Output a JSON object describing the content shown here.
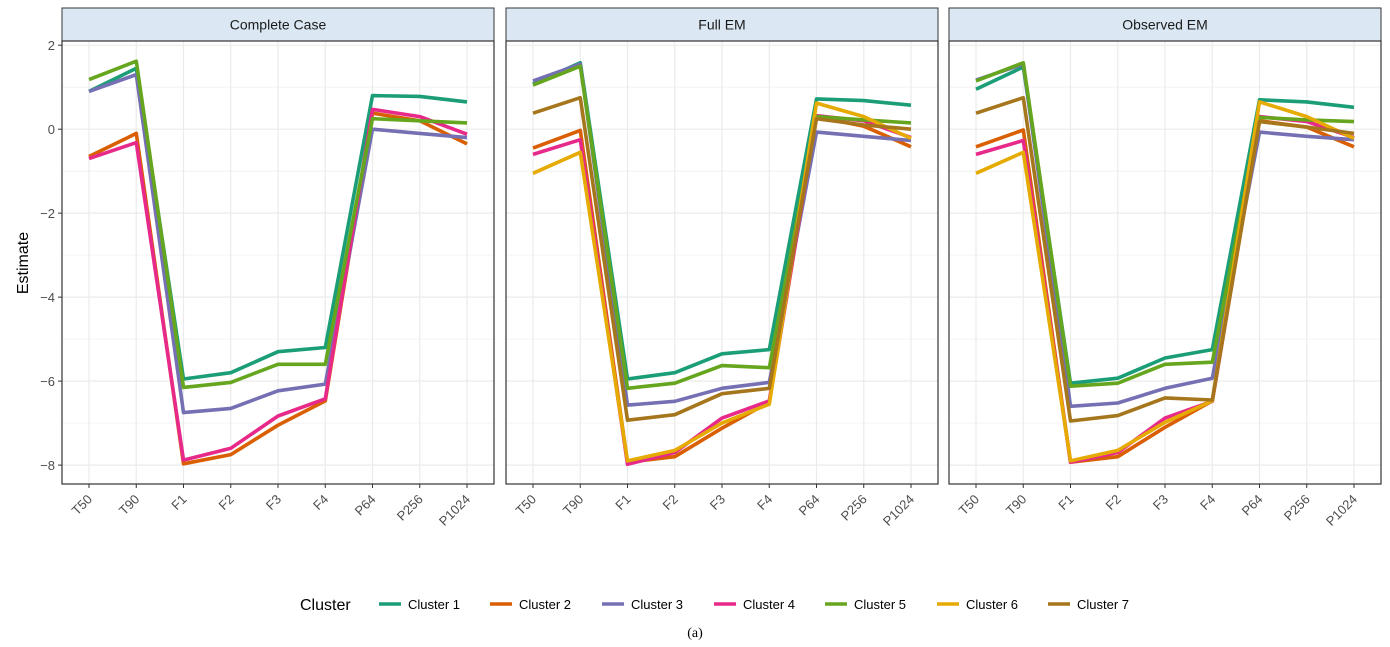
{
  "chart_data": {
    "type": "line",
    "ylabel": "Estimate",
    "xlabel": "",
    "categories": [
      "T50",
      "T90",
      "F1",
      "F2",
      "F3",
      "F4",
      "P64",
      "P256",
      "P1024"
    ],
    "y_ticks": [
      "2",
      "0",
      "−2",
      "−4",
      "−6",
      "−8"
    ],
    "y_tick_values": [
      2,
      0,
      -2,
      -4,
      -6,
      -8
    ],
    "ylim": [
      -8.45,
      2.1
    ],
    "grid": true,
    "legend": {
      "title": "Cluster",
      "position": "bottom",
      "items": [
        "Cluster 1",
        "Cluster 2",
        "Cluster 3",
        "Cluster 4",
        "Cluster 5",
        "Cluster 6",
        "Cluster 7"
      ]
    },
    "colors": {
      "Cluster 1": "#1b9e77",
      "Cluster 2": "#d95f02",
      "Cluster 3": "#7570b3",
      "Cluster 4": "#e7298a",
      "Cluster 5": "#66a61e",
      "Cluster 6": "#e6ab02",
      "Cluster 7": "#a6761d"
    },
    "panels": [
      {
        "title": "Complete Case",
        "series": [
          {
            "name": "Cluster 1",
            "values": [
              0.9,
              1.45,
              -5.95,
              -5.8,
              -5.3,
              -5.2,
              0.8,
              0.78,
              0.65
            ]
          },
          {
            "name": "Cluster 2",
            "values": [
              -0.65,
              -0.1,
              -7.97,
              -7.75,
              -7.05,
              -6.47,
              0.38,
              0.2,
              -0.35
            ]
          },
          {
            "name": "Cluster 3",
            "values": [
              0.9,
              1.3,
              -6.75,
              -6.65,
              -6.23,
              -6.07,
              0.0,
              -0.1,
              -0.2
            ]
          },
          {
            "name": "Cluster 4",
            "values": [
              -0.7,
              -0.32,
              -7.88,
              -7.6,
              -6.83,
              -6.42,
              0.47,
              0.3,
              -0.12
            ]
          },
          {
            "name": "Cluster 5",
            "values": [
              1.18,
              1.62,
              -6.15,
              -6.03,
              -5.6,
              -5.6,
              0.25,
              0.2,
              0.15
            ]
          }
        ]
      },
      {
        "title": "Full EM",
        "series": [
          {
            "name": "Cluster 1",
            "values": [
              1.08,
              1.58,
              -5.95,
              -5.8,
              -5.35,
              -5.25,
              0.72,
              0.68,
              0.57
            ]
          },
          {
            "name": "Cluster 2",
            "values": [
              -0.45,
              -0.03,
              -7.93,
              -7.8,
              -7.12,
              -6.5,
              0.3,
              0.07,
              -0.42
            ]
          },
          {
            "name": "Cluster 3",
            "values": [
              1.15,
              1.55,
              -6.57,
              -6.48,
              -6.17,
              -6.03,
              -0.07,
              -0.17,
              -0.27
            ]
          },
          {
            "name": "Cluster 4",
            "values": [
              -0.6,
              -0.25,
              -7.98,
              -7.7,
              -6.88,
              -6.47,
              0.32,
              0.2,
              -0.2
            ]
          },
          {
            "name": "Cluster 5",
            "values": [
              1.05,
              1.5,
              -6.17,
              -6.05,
              -5.63,
              -5.68,
              0.3,
              0.22,
              0.15
            ]
          },
          {
            "name": "Cluster 6",
            "values": [
              -1.05,
              -0.55,
              -7.9,
              -7.65,
              -7.0,
              -6.55,
              0.62,
              0.3,
              -0.22
            ]
          },
          {
            "name": "Cluster 7",
            "values": [
              0.38,
              0.75,
              -6.93,
              -6.8,
              -6.3,
              -6.17,
              0.25,
              0.1,
              0.0
            ]
          }
        ]
      },
      {
        "title": "Observed EM",
        "series": [
          {
            "name": "Cluster 1",
            "values": [
              0.95,
              1.48,
              -6.05,
              -5.93,
              -5.45,
              -5.25,
              0.7,
              0.65,
              0.52
            ]
          },
          {
            "name": "Cluster 2",
            "values": [
              -0.42,
              -0.02,
              -7.93,
              -7.8,
              -7.1,
              -6.47,
              0.2,
              0.05,
              -0.42
            ]
          },
          {
            "name": "Cluster 3",
            "values": [
              1.17,
              1.55,
              -6.6,
              -6.52,
              -6.17,
              -5.93,
              -0.07,
              -0.17,
              -0.25
            ]
          },
          {
            "name": "Cluster 4",
            "values": [
              -0.6,
              -0.27,
              -7.93,
              -7.7,
              -6.88,
              -6.48,
              0.3,
              0.18,
              -0.2
            ]
          },
          {
            "name": "Cluster 5",
            "values": [
              1.15,
              1.58,
              -6.12,
              -6.05,
              -5.6,
              -5.55,
              0.28,
              0.22,
              0.18
            ]
          },
          {
            "name": "Cluster 6",
            "values": [
              -1.05,
              -0.55,
              -7.9,
              -7.65,
              -6.98,
              -6.47,
              0.65,
              0.3,
              -0.22
            ]
          },
          {
            "name": "Cluster 7",
            "values": [
              0.38,
              0.75,
              -6.95,
              -6.82,
              -6.4,
              -6.45,
              0.18,
              0.05,
              -0.1
            ]
          }
        ]
      }
    ]
  },
  "caption": "(a)"
}
